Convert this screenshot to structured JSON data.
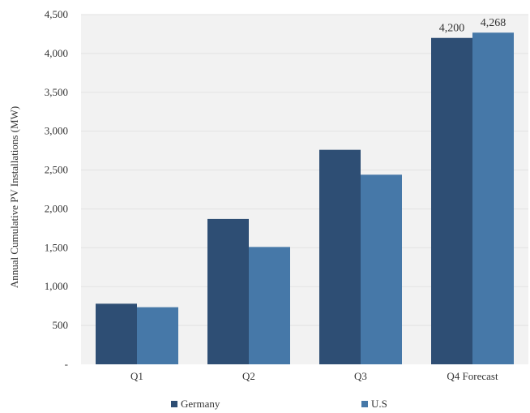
{
  "chart_data": {
    "type": "bar",
    "categories": [
      "Q1",
      "Q2",
      "Q3",
      "Q4 Forecast"
    ],
    "series": [
      {
        "name": "Germany",
        "values": [
          780,
          1870,
          2760,
          4200
        ],
        "color": "#2e4e74"
      },
      {
        "name": "U.S",
        "values": [
          735,
          1510,
          2440,
          4268
        ],
        "color": "#4678a8"
      }
    ],
    "data_labels": [
      {
        "series": 0,
        "index": 3,
        "text": "4,200"
      },
      {
        "series": 1,
        "index": 3,
        "text": "4,268"
      }
    ],
    "ylabel": "Annual Cumulative PV Installations (MW)",
    "yticks": [
      "-",
      "500",
      "1,000",
      "1,500",
      "2,000",
      "2,500",
      "3,000",
      "3,500",
      "4,000",
      "4,500"
    ],
    "ylim": [
      0,
      4500
    ],
    "grid": true,
    "legend": "bottom",
    "plot_bg": "#f2f2f2"
  }
}
